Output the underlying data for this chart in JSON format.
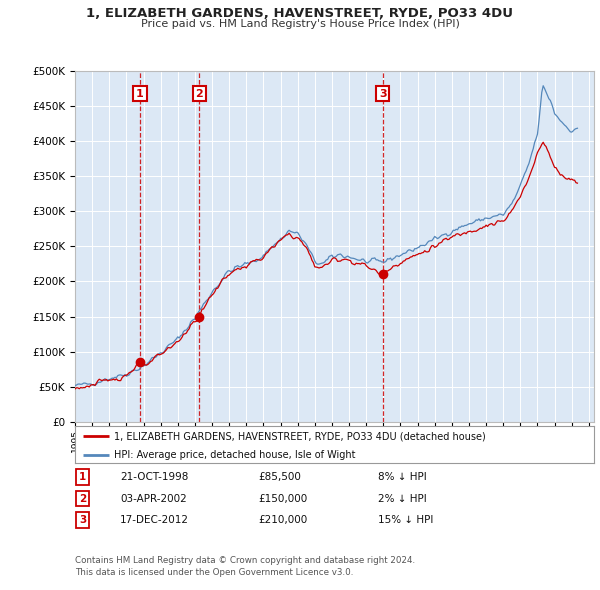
{
  "title": "1, ELIZABETH GARDENS, HAVENSTREET, RYDE, PO33 4DU",
  "subtitle": "Price paid vs. HM Land Registry's House Price Index (HPI)",
  "legend_label_red": "1, ELIZABETH GARDENS, HAVENSTREET, RYDE, PO33 4DU (detached house)",
  "legend_label_blue": "HPI: Average price, detached house, Isle of Wight",
  "footer1": "Contains HM Land Registry data © Crown copyright and database right 2024.",
  "footer2": "This data is licensed under the Open Government Licence v3.0.",
  "sales": [
    {
      "num": 1,
      "date": "21-OCT-1998",
      "price": 85500,
      "pct": "8%",
      "direction": "↓",
      "year": 1998.79
    },
    {
      "num": 2,
      "date": "03-APR-2002",
      "price": 150000,
      "pct": "2%",
      "direction": "↓",
      "year": 2002.25
    },
    {
      "num": 3,
      "date": "17-DEC-2012",
      "price": 210000,
      "pct": "15%",
      "direction": "↓",
      "year": 2012.96
    }
  ],
  "ylim": [
    0,
    500000
  ],
  "xlim_start": 1995.0,
  "xlim_end": 2025.3,
  "bg_color": "#ffffff",
  "plot_bg_color": "#dce8f5",
  "grid_color": "#ffffff",
  "red_color": "#cc0000",
  "blue_color": "#5588bb",
  "dashed_color": "#cc0000"
}
